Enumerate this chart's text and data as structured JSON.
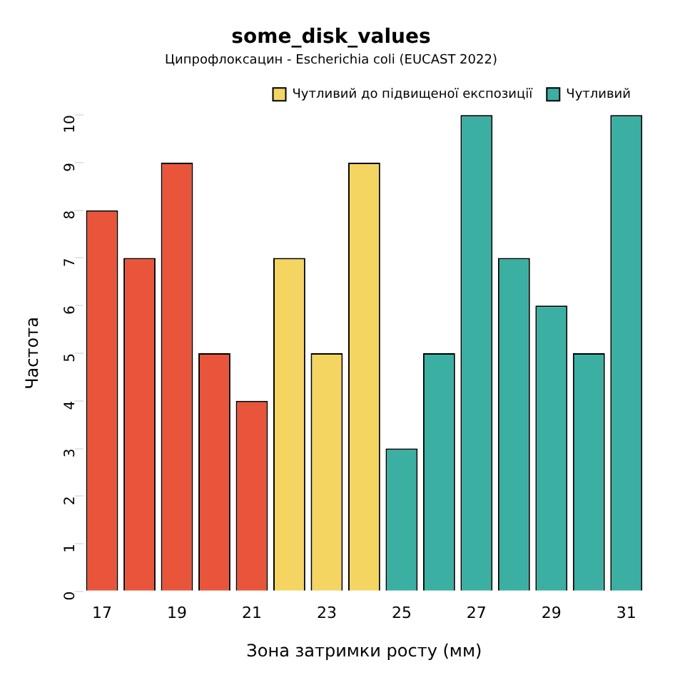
{
  "chart_data": {
    "type": "bar",
    "title": "some_disk_values",
    "subtitle": "Ципрофлоксацин - Escherichia coli (EUCAST 2022)",
    "xlabel": "Зона затримки росту (мм)",
    "ylabel": "Частота",
    "categories": [
      "17",
      null,
      "19",
      null,
      "21",
      null,
      "23",
      null,
      "25",
      null,
      "27",
      null,
      "29",
      null,
      "31"
    ],
    "series": [
      {
        "color": "#e8553a",
        "values": [
          8,
          7,
          9,
          5,
          4,
          null,
          null,
          null,
          null,
          null,
          null,
          null,
          null,
          null,
          null
        ]
      },
      {
        "name": "Чутливий до підвищеної експозиції",
        "color": "#f5d562",
        "values": [
          null,
          null,
          null,
          null,
          null,
          7,
          5,
          9,
          null,
          null,
          null,
          null,
          null,
          null,
          null
        ]
      },
      {
        "name": "Чутливий",
        "color": "#3aafa2",
        "values": [
          null,
          null,
          null,
          null,
          null,
          null,
          null,
          null,
          3,
          5,
          10,
          7,
          6,
          5,
          10
        ]
      }
    ],
    "ylim": [
      0,
      10
    ],
    "yticks": [
      0,
      1,
      2,
      3,
      4,
      5,
      6,
      7,
      8,
      9,
      10
    ],
    "grid": false,
    "legend": "top right"
  }
}
